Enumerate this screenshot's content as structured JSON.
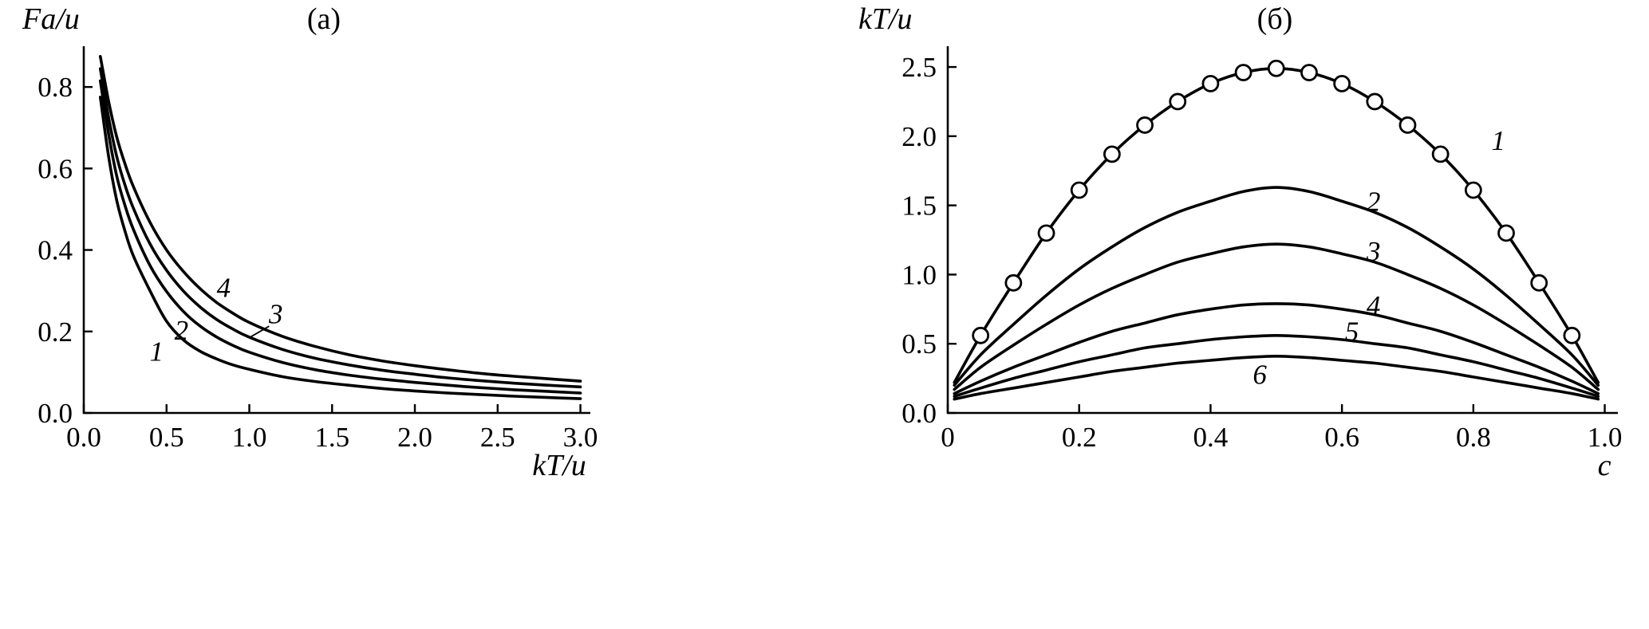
{
  "style": {
    "background": "#ffffff",
    "line_color": "#000000",
    "marker_fill": "#ffffff"
  },
  "chart_data": [
    {
      "id": "a",
      "type": "line",
      "title": "(а)",
      "xlabel": "kT/u",
      "ylabel": "Fa/u",
      "xlim": [
        0,
        3.06
      ],
      "ylim": [
        0,
        0.9
      ],
      "grid": false,
      "legend": "none",
      "xticks": {
        "values": [
          0,
          0.5,
          1.0,
          1.5,
          2.0,
          2.5,
          3.0
        ],
        "labels": [
          "0.0",
          "0.5",
          "1.0",
          "1.5",
          "2.0",
          "2.5",
          "3.0"
        ]
      },
      "yticks": {
        "values": [
          0,
          0.2,
          0.4,
          0.6,
          0.8
        ],
        "labels": [
          "0.0",
          "0.2",
          "0.4",
          "0.6",
          "0.8"
        ]
      },
      "x": [
        0.1,
        0.15,
        0.2,
        0.25,
        0.3,
        0.4,
        0.5,
        0.6,
        0.7,
        0.8,
        0.9,
        1.0,
        1.2,
        1.4,
        1.6,
        1.8,
        2.0,
        2.2,
        2.4,
        2.6,
        2.8,
        3.0
      ],
      "series": [
        {
          "name": "1",
          "values": [
            0.775,
            0.63,
            0.52,
            0.445,
            0.385,
            0.3,
            0.225,
            0.18,
            0.152,
            0.133,
            0.118,
            0.107,
            0.089,
            0.077,
            0.068,
            0.06,
            0.054,
            0.049,
            0.045,
            0.041,
            0.038,
            0.035
          ],
          "label": {
            "text": "1",
            "x": 0.44,
            "y": 0.128
          }
        },
        {
          "name": "2",
          "values": [
            0.815,
            0.685,
            0.58,
            0.508,
            0.45,
            0.362,
            0.298,
            0.25,
            0.214,
            0.187,
            0.166,
            0.149,
            0.124,
            0.106,
            0.093,
            0.083,
            0.075,
            0.068,
            0.062,
            0.057,
            0.053,
            0.049
          ],
          "label": {
            "text": "2",
            "x": 0.59,
            "y": 0.18
          }
        },
        {
          "name": "3",
          "values": [
            0.845,
            0.725,
            0.628,
            0.558,
            0.502,
            0.415,
            0.35,
            0.3,
            0.261,
            0.23,
            0.206,
            0.186,
            0.156,
            0.134,
            0.118,
            0.105,
            0.095,
            0.086,
            0.079,
            0.073,
            0.068,
            0.064
          ],
          "label": {
            "text": "3",
            "x": 1.16,
            "y": 0.22
          }
        },
        {
          "name": "4",
          "values": [
            0.875,
            0.765,
            0.676,
            0.61,
            0.555,
            0.468,
            0.4,
            0.348,
            0.306,
            0.272,
            0.245,
            0.222,
            0.188,
            0.163,
            0.143,
            0.128,
            0.116,
            0.106,
            0.097,
            0.09,
            0.084,
            0.078
          ],
          "label": {
            "text": "4",
            "x": 0.845,
            "y": 0.285
          }
        }
      ],
      "annotations": [
        {
          "type": "leader-line",
          "x1": 1.12,
          "y1": 0.213,
          "x2": 1.005,
          "y2": 0.186
        }
      ]
    },
    {
      "id": "b",
      "type": "line",
      "title": "(б)",
      "xlabel": "c",
      "ylabel": "kT/u",
      "xlim": [
        0,
        1.02
      ],
      "ylim": [
        0,
        2.65
      ],
      "grid": false,
      "legend": "none",
      "xticks": {
        "values": [
          0,
          0.2,
          0.4,
          0.6,
          0.8,
          1.0
        ],
        "labels": [
          "0",
          "0.2",
          "0.4",
          "0.6",
          "0.8",
          "1.0"
        ]
      },
      "yticks": {
        "values": [
          0,
          0.5,
          1.0,
          1.5,
          2.0,
          2.5
        ],
        "labels": [
          "0.0",
          "0.5",
          "1.0",
          "1.5",
          "2.0",
          "2.5"
        ]
      },
      "x": [
        0.01,
        0.05,
        0.1,
        0.15,
        0.2,
        0.25,
        0.3,
        0.35,
        0.4,
        0.45,
        0.5,
        0.55,
        0.6,
        0.65,
        0.7,
        0.75,
        0.8,
        0.85,
        0.9,
        0.95,
        0.99
      ],
      "series": [
        {
          "name": "1",
          "marker": "circle",
          "marker_x": [
            0.05,
            0.1,
            0.15,
            0.2,
            0.25,
            0.3,
            0.35,
            0.4,
            0.45,
            0.5,
            0.55,
            0.6,
            0.65,
            0.7,
            0.75,
            0.8,
            0.85,
            0.9,
            0.95
          ],
          "values": [
            0.22,
            0.56,
            0.94,
            1.3,
            1.61,
            1.87,
            2.08,
            2.25,
            2.38,
            2.46,
            2.49,
            2.46,
            2.38,
            2.25,
            2.08,
            1.87,
            1.61,
            1.3,
            0.94,
            0.56,
            0.22
          ],
          "label": {
            "text": "1",
            "x": 0.838,
            "y": 1.9
          }
        },
        {
          "name": "2",
          "values": [
            0.2,
            0.42,
            0.64,
            0.85,
            1.04,
            1.2,
            1.34,
            1.45,
            1.53,
            1.6,
            1.63,
            1.6,
            1.53,
            1.45,
            1.34,
            1.2,
            1.04,
            0.85,
            0.64,
            0.42,
            0.2
          ],
          "label": {
            "text": "2",
            "x": 0.648,
            "y": 1.46
          }
        },
        {
          "name": "3",
          "values": [
            0.17,
            0.33,
            0.49,
            0.64,
            0.78,
            0.9,
            1.0,
            1.09,
            1.15,
            1.2,
            1.22,
            1.2,
            1.15,
            1.09,
            1.0,
            0.9,
            0.78,
            0.64,
            0.49,
            0.33,
            0.17
          ],
          "label": {
            "text": "3",
            "x": 0.648,
            "y": 1.1
          }
        },
        {
          "name": "4",
          "values": [
            0.14,
            0.23,
            0.33,
            0.42,
            0.51,
            0.59,
            0.65,
            0.71,
            0.75,
            0.78,
            0.79,
            0.78,
            0.75,
            0.71,
            0.65,
            0.59,
            0.51,
            0.42,
            0.33,
            0.23,
            0.14
          ],
          "label": {
            "text": "4",
            "x": 0.648,
            "y": 0.71
          }
        },
        {
          "name": "5",
          "values": [
            0.12,
            0.18,
            0.25,
            0.31,
            0.37,
            0.42,
            0.47,
            0.5,
            0.53,
            0.55,
            0.56,
            0.55,
            0.53,
            0.5,
            0.47,
            0.42,
            0.37,
            0.31,
            0.25,
            0.18,
            0.12
          ],
          "label": {
            "text": "5",
            "x": 0.615,
            "y": 0.52
          }
        },
        {
          "name": "6",
          "values": [
            0.1,
            0.14,
            0.18,
            0.22,
            0.26,
            0.3,
            0.33,
            0.36,
            0.38,
            0.4,
            0.41,
            0.4,
            0.38,
            0.36,
            0.33,
            0.3,
            0.26,
            0.22,
            0.18,
            0.14,
            0.1
          ],
          "label": {
            "text": "6",
            "x": 0.475,
            "y": 0.21
          }
        }
      ],
      "annotations": []
    }
  ]
}
